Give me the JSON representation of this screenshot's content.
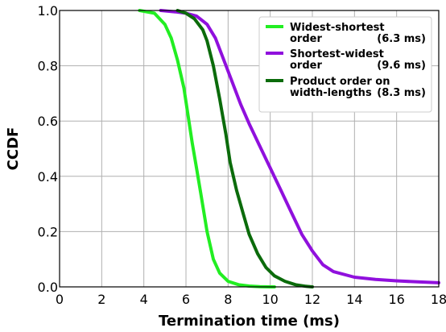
{
  "chart_data": {
    "type": "line",
    "xlabel": "Termination time (ms)",
    "ylabel": "CCDF",
    "xlim": [
      0,
      18
    ],
    "ylim": [
      0,
      1
    ],
    "xticks": [
      0,
      2,
      4,
      6,
      8,
      10,
      12,
      14,
      16,
      18
    ],
    "yticks": [
      0.0,
      0.2,
      0.4,
      0.6,
      0.8,
      1.0
    ],
    "xtick_labels": [
      "0",
      "2",
      "4",
      "6",
      "8",
      "10",
      "12",
      "14",
      "16",
      "18"
    ],
    "ytick_labels": [
      "0.0",
      "0.2",
      "0.4",
      "0.6",
      "0.8",
      "1.0"
    ],
    "grid": true,
    "legend_position": "top-right",
    "series": [
      {
        "name_lines": [
          "Widest-shortest",
          "order"
        ],
        "mean_label": "(6.3 ms)",
        "color": "#22ee22",
        "x": [
          3.8,
          4.5,
          5.0,
          5.3,
          5.6,
          5.9,
          6.1,
          6.3,
          6.5,
          6.7,
          7.0,
          7.3,
          7.6,
          8.0,
          8.5,
          9.0,
          9.5,
          10.0,
          10.2
        ],
        "y": [
          1.0,
          0.99,
          0.95,
          0.9,
          0.82,
          0.72,
          0.62,
          0.52,
          0.43,
          0.34,
          0.2,
          0.1,
          0.05,
          0.02,
          0.008,
          0.003,
          0.001,
          0.0,
          0.0
        ]
      },
      {
        "name_lines": [
          "Shortest-widest",
          "order"
        ],
        "mean_label": "(9.6 ms)",
        "color": "#9010dd",
        "x": [
          4.8,
          5.5,
          6.0,
          6.5,
          7.0,
          7.4,
          7.8,
          8.2,
          8.6,
          9.0,
          9.5,
          10.0,
          10.5,
          11.0,
          11.5,
          12.0,
          12.5,
          13.0,
          14.0,
          15.0,
          16.0,
          17.0,
          18.0
        ],
        "y": [
          1.0,
          0.995,
          0.99,
          0.98,
          0.95,
          0.9,
          0.82,
          0.74,
          0.66,
          0.59,
          0.51,
          0.43,
          0.35,
          0.27,
          0.19,
          0.13,
          0.08,
          0.055,
          0.035,
          0.027,
          0.022,
          0.018,
          0.015
        ]
      },
      {
        "name_lines": [
          "Product order on",
          "width-lengths"
        ],
        "mean_label": "(8.3 ms)",
        "color": "#0b6b0b",
        "x": [
          5.6,
          6.0,
          6.4,
          6.8,
          7.0,
          7.3,
          7.6,
          7.9,
          8.1,
          8.4,
          8.7,
          9.0,
          9.4,
          9.8,
          10.2,
          10.7,
          11.2,
          11.7,
          12.0
        ],
        "y": [
          1.0,
          0.99,
          0.97,
          0.93,
          0.89,
          0.8,
          0.68,
          0.55,
          0.45,
          0.35,
          0.27,
          0.19,
          0.12,
          0.07,
          0.04,
          0.02,
          0.008,
          0.002,
          0.0
        ]
      }
    ]
  }
}
